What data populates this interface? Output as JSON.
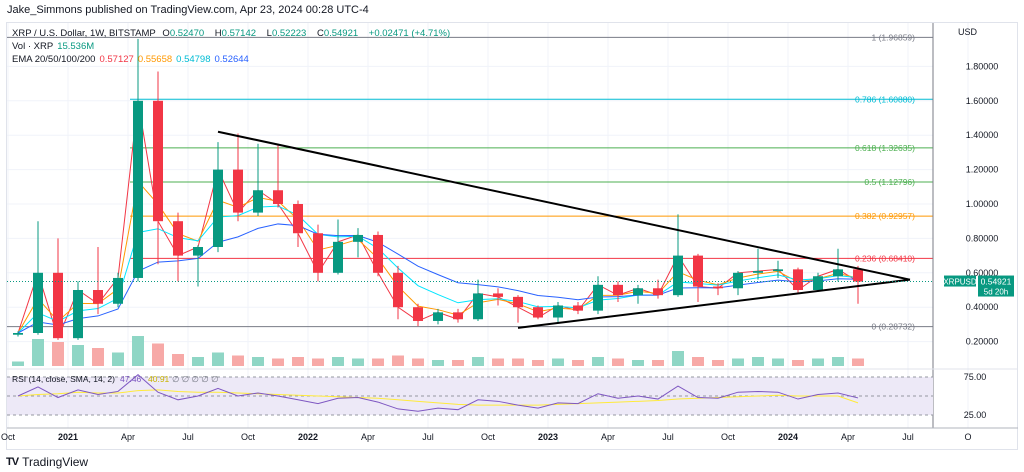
{
  "header": {
    "published": "Jake_Simmons published on TradingView.com, Apr 23, 2024 00:28 UTC-4"
  },
  "legend": {
    "symbol": "XRP / U.S. Dollar, 1W, BITSTAMP",
    "o_label": "O",
    "o": "0.52470",
    "h_label": "H",
    "h": "0.57142",
    "l_label": "L",
    "l": "0.52223",
    "c_label": "C",
    "c": "0.54921",
    "change": "+0.02471 (+4.71%)",
    "vol_label": "Vol · XRP",
    "vol": "15.536M",
    "ema_label": "EMA 20/50/100/200",
    "ema20": "0.57127",
    "ema50": "0.55658",
    "ema100": "0.54798",
    "ema200": "0.52644"
  },
  "colors": {
    "up": "#089981",
    "down": "#f23645",
    "ema20": "#f23645",
    "ema50": "#ff9800",
    "ema100": "#00e5ff",
    "ema200": "#2962ff",
    "rsi": "#7e57c2",
    "rsi_ma": "#ffeb3b"
  },
  "rsi_legend": {
    "label": "RSI (14, close, SMA, 14, 2)",
    "rsi": "47.46",
    "ma": "40.91",
    "na": "∅ ∅ ∅ ∅ ∅"
  },
  "price_tag": {
    "symbol": "XRPUSD",
    "price": "0.54921",
    "countdown": "5d 20h"
  },
  "axis": {
    "currency": "USD",
    "price_ticks": [
      "1.80000",
      "1.60000",
      "1.40000",
      "1.20000",
      "1.00000",
      "0.80000",
      "0.60000",
      "0.40000",
      "0.20000"
    ],
    "rsi_ticks": [
      "75.00",
      "25.00"
    ],
    "time_ticks": [
      "Oct",
      "2021",
      "Apr",
      "Jul",
      "Oct",
      "2022",
      "Apr",
      "Jul",
      "Oct",
      "2023",
      "Apr",
      "Jul",
      "Oct",
      "2024",
      "Apr",
      "Jul",
      "O"
    ]
  },
  "branding": {
    "logo_text": "TradingView"
  },
  "chart_data": {
    "type": "candlestick",
    "scale": "price",
    "start": "2020-10",
    "interval": "month",
    "ohlc": [
      [
        0.24,
        0.26,
        0.23,
        0.25
      ],
      [
        0.25,
        0.9,
        0.24,
        0.6
      ],
      [
        0.6,
        0.8,
        0.21,
        0.22
      ],
      [
        0.22,
        0.55,
        0.21,
        0.5
      ],
      [
        0.5,
        0.75,
        0.36,
        0.42
      ],
      [
        0.42,
        0.6,
        0.4,
        0.57
      ],
      [
        0.57,
        1.96,
        0.55,
        1.6
      ],
      [
        1.6,
        1.77,
        0.65,
        0.9
      ],
      [
        0.9,
        0.95,
        0.55,
        0.7
      ],
      [
        0.7,
        0.76,
        0.52,
        0.75
      ],
      [
        0.75,
        1.36,
        0.72,
        1.2
      ],
      [
        1.2,
        1.41,
        0.9,
        0.95
      ],
      [
        0.95,
        1.35,
        0.93,
        1.08
      ],
      [
        1.08,
        1.35,
        0.98,
        1.0
      ],
      [
        1.0,
        1.02,
        0.75,
        0.83
      ],
      [
        0.83,
        0.88,
        0.55,
        0.6
      ],
      [
        0.6,
        0.91,
        0.59,
        0.78
      ],
      [
        0.78,
        0.86,
        0.69,
        0.82
      ],
      [
        0.82,
        0.84,
        0.58,
        0.6
      ],
      [
        0.6,
        0.64,
        0.33,
        0.4
      ],
      [
        0.4,
        0.42,
        0.29,
        0.32
      ],
      [
        0.32,
        0.39,
        0.3,
        0.37
      ],
      [
        0.37,
        0.39,
        0.31,
        0.33
      ],
      [
        0.33,
        0.56,
        0.32,
        0.48
      ],
      [
        0.48,
        0.51,
        0.41,
        0.46
      ],
      [
        0.46,
        0.47,
        0.31,
        0.4
      ],
      [
        0.4,
        0.41,
        0.33,
        0.34
      ],
      [
        0.34,
        0.43,
        0.31,
        0.41
      ],
      [
        0.41,
        0.43,
        0.36,
        0.38
      ],
      [
        0.38,
        0.58,
        0.36,
        0.53
      ],
      [
        0.53,
        0.55,
        0.43,
        0.47
      ],
      [
        0.47,
        0.53,
        0.42,
        0.51
      ],
      [
        0.51,
        0.56,
        0.45,
        0.47
      ],
      [
        0.47,
        0.94,
        0.46,
        0.7
      ],
      [
        0.7,
        0.71,
        0.43,
        0.52
      ],
      [
        0.52,
        0.54,
        0.47,
        0.51
      ],
      [
        0.51,
        0.61,
        0.47,
        0.6
      ],
      [
        0.6,
        0.74,
        0.56,
        0.61
      ],
      [
        0.61,
        0.67,
        0.57,
        0.62
      ],
      [
        0.62,
        0.63,
        0.48,
        0.5
      ],
      [
        0.5,
        0.6,
        0.49,
        0.58
      ],
      [
        0.58,
        0.74,
        0.55,
        0.62
      ],
      [
        0.62,
        0.64,
        0.42,
        0.549
      ]
    ],
    "volume": [
      3,
      18,
      16,
      14,
      12,
      9,
      20,
      15,
      8,
      6,
      9,
      7,
      6,
      5,
      6,
      5,
      6,
      5,
      5,
      7,
      5,
      4,
      4,
      6,
      5,
      5,
      4,
      5,
      4,
      6,
      5,
      4,
      4,
      10,
      6,
      4,
      5,
      6,
      5,
      4,
      5,
      6,
      5
    ],
    "rsi": [
      50,
      62,
      48,
      58,
      52,
      56,
      78,
      55,
      45,
      50,
      60,
      50,
      54,
      50,
      45,
      40,
      47,
      48,
      42,
      33,
      30,
      34,
      32,
      45,
      43,
      38,
      34,
      41,
      40,
      53,
      47,
      50,
      46,
      63,
      48,
      47,
      55,
      56,
      55,
      46,
      52,
      54,
      47.46
    ],
    "rsi_ma": [
      50,
      52,
      53,
      55,
      54,
      54,
      57,
      58,
      56,
      55,
      55,
      54,
      53,
      52,
      51,
      50,
      49,
      48,
      47,
      45,
      43,
      41,
      39,
      38,
      38,
      38,
      38,
      39,
      40,
      41,
      42,
      43,
      44,
      46,
      47,
      48,
      49,
      50,
      51,
      50,
      50,
      50,
      40.91
    ],
    "fib_levels": [
      {
        "ratio": "1",
        "price": 1.96859,
        "label": "1 (1.96859)",
        "color": "#787b86"
      },
      {
        "ratio": "0.786",
        "price": 1.6088,
        "label": "0.786 (1.60880)",
        "color": "#00bcd4"
      },
      {
        "ratio": "0.618",
        "price": 1.32635,
        "label": "0.618 (1.32635)",
        "color": "#4caf50"
      },
      {
        "ratio": "0.5",
        "price": 1.12796,
        "label": "0.5 (1.12796)",
        "color": "#4caf50"
      },
      {
        "ratio": "0.382",
        "price": 0.92957,
        "label": "0.382 (0.92957)",
        "color": "#ff9800"
      },
      {
        "ratio": "0.236",
        "price": 0.6841,
        "label": "0.236 (0.68410)",
        "color": "#f23645"
      },
      {
        "ratio": "0",
        "price": 0.28732,
        "label": "0 (0.28732)",
        "color": "#787b86"
      }
    ],
    "trendlines": [
      {
        "from": [
          "2021-08",
          1.42
        ],
        "to": [
          "2024-06",
          0.56
        ]
      },
      {
        "from": [
          "2022-11",
          0.28
        ],
        "to": [
          "2024-06",
          0.56
        ]
      }
    ],
    "ylim": [
      0,
      2.0
    ]
  }
}
